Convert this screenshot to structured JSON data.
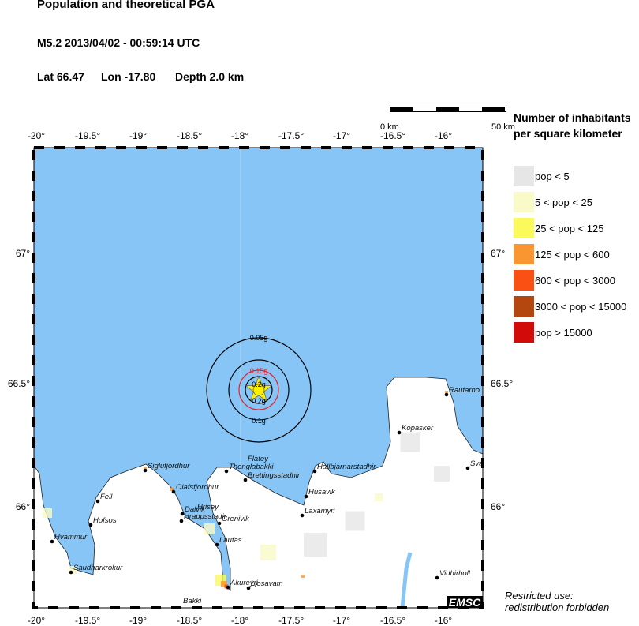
{
  "header": {
    "title": "Population and theoretical PGA",
    "event": "M5.2  2013/04/02 - 00:59:14 UTC",
    "lat": "Lat 66.47",
    "lon": "Lon -17.80",
    "depth": "Depth  2.0 km"
  },
  "scale_bar": {
    "start": "0 km",
    "end": "50 km"
  },
  "axes": {
    "lon_ticks": [
      "-20°",
      "-19.5°",
      "-19°",
      "-18.5°",
      "-18°",
      "-17.5°",
      "-17°",
      "-16.5°",
      "-16°"
    ],
    "lat_ticks": [
      "67°",
      "66.5°",
      "66°"
    ]
  },
  "colors": {
    "water": "#86c5f5",
    "land": "#ffffff",
    "pga_red": "#e8202a",
    "epicenter": "#ffef00"
  },
  "pga_contours": [
    {
      "label": "0.05g",
      "color": "#000000"
    },
    {
      "label": "0.1g",
      "color": "#000000"
    },
    {
      "label": "0.15g",
      "color": "#e8202a"
    },
    {
      "label": "0.2g",
      "color": "#000000"
    }
  ],
  "epicenter": {
    "lat": 66.47,
    "lon": -17.8,
    "icon": "star-icon"
  },
  "towns": [
    "Siglufjordhur",
    "Olafsfjordhur",
    "Fell",
    "Hofsos",
    "Hvammur",
    "Saudharkrokur",
    "Dalvik",
    "Hrisey",
    "Hrappsstadir",
    "Grenivik",
    "Laufas",
    "Akureyri",
    "Ljosavatn",
    "Bakki",
    "Thonglabakki",
    "Flatey",
    "Brettingsstadhir",
    "Hallbjarnarstadhir",
    "Husavik",
    "Laxamyri",
    "Kopasker",
    "Raufarho",
    "Sva",
    "Vidhirholl"
  ],
  "legend": {
    "title_line1": "Number of inhabitants",
    "title_line2": "per square kilometer",
    "items": [
      {
        "label": "pop < 5",
        "color": "#e6e6e6"
      },
      {
        "label": "5 < pop < 25",
        "color": "#fafac8"
      },
      {
        "label": "25 < pop < 125",
        "color": "#fafa5a"
      },
      {
        "label": "125 < pop < 600",
        "color": "#fa9632"
      },
      {
        "label": "600 < pop < 3000",
        "color": "#fa5014"
      },
      {
        "label": "3000 < pop < 15000",
        "color": "#b4460f"
      },
      {
        "label": "pop > 15000",
        "color": "#d20a0a"
      }
    ]
  },
  "logo": "EMSC",
  "footer": {
    "line1": "Restricted use:",
    "line2": "redistribution forbidden"
  }
}
